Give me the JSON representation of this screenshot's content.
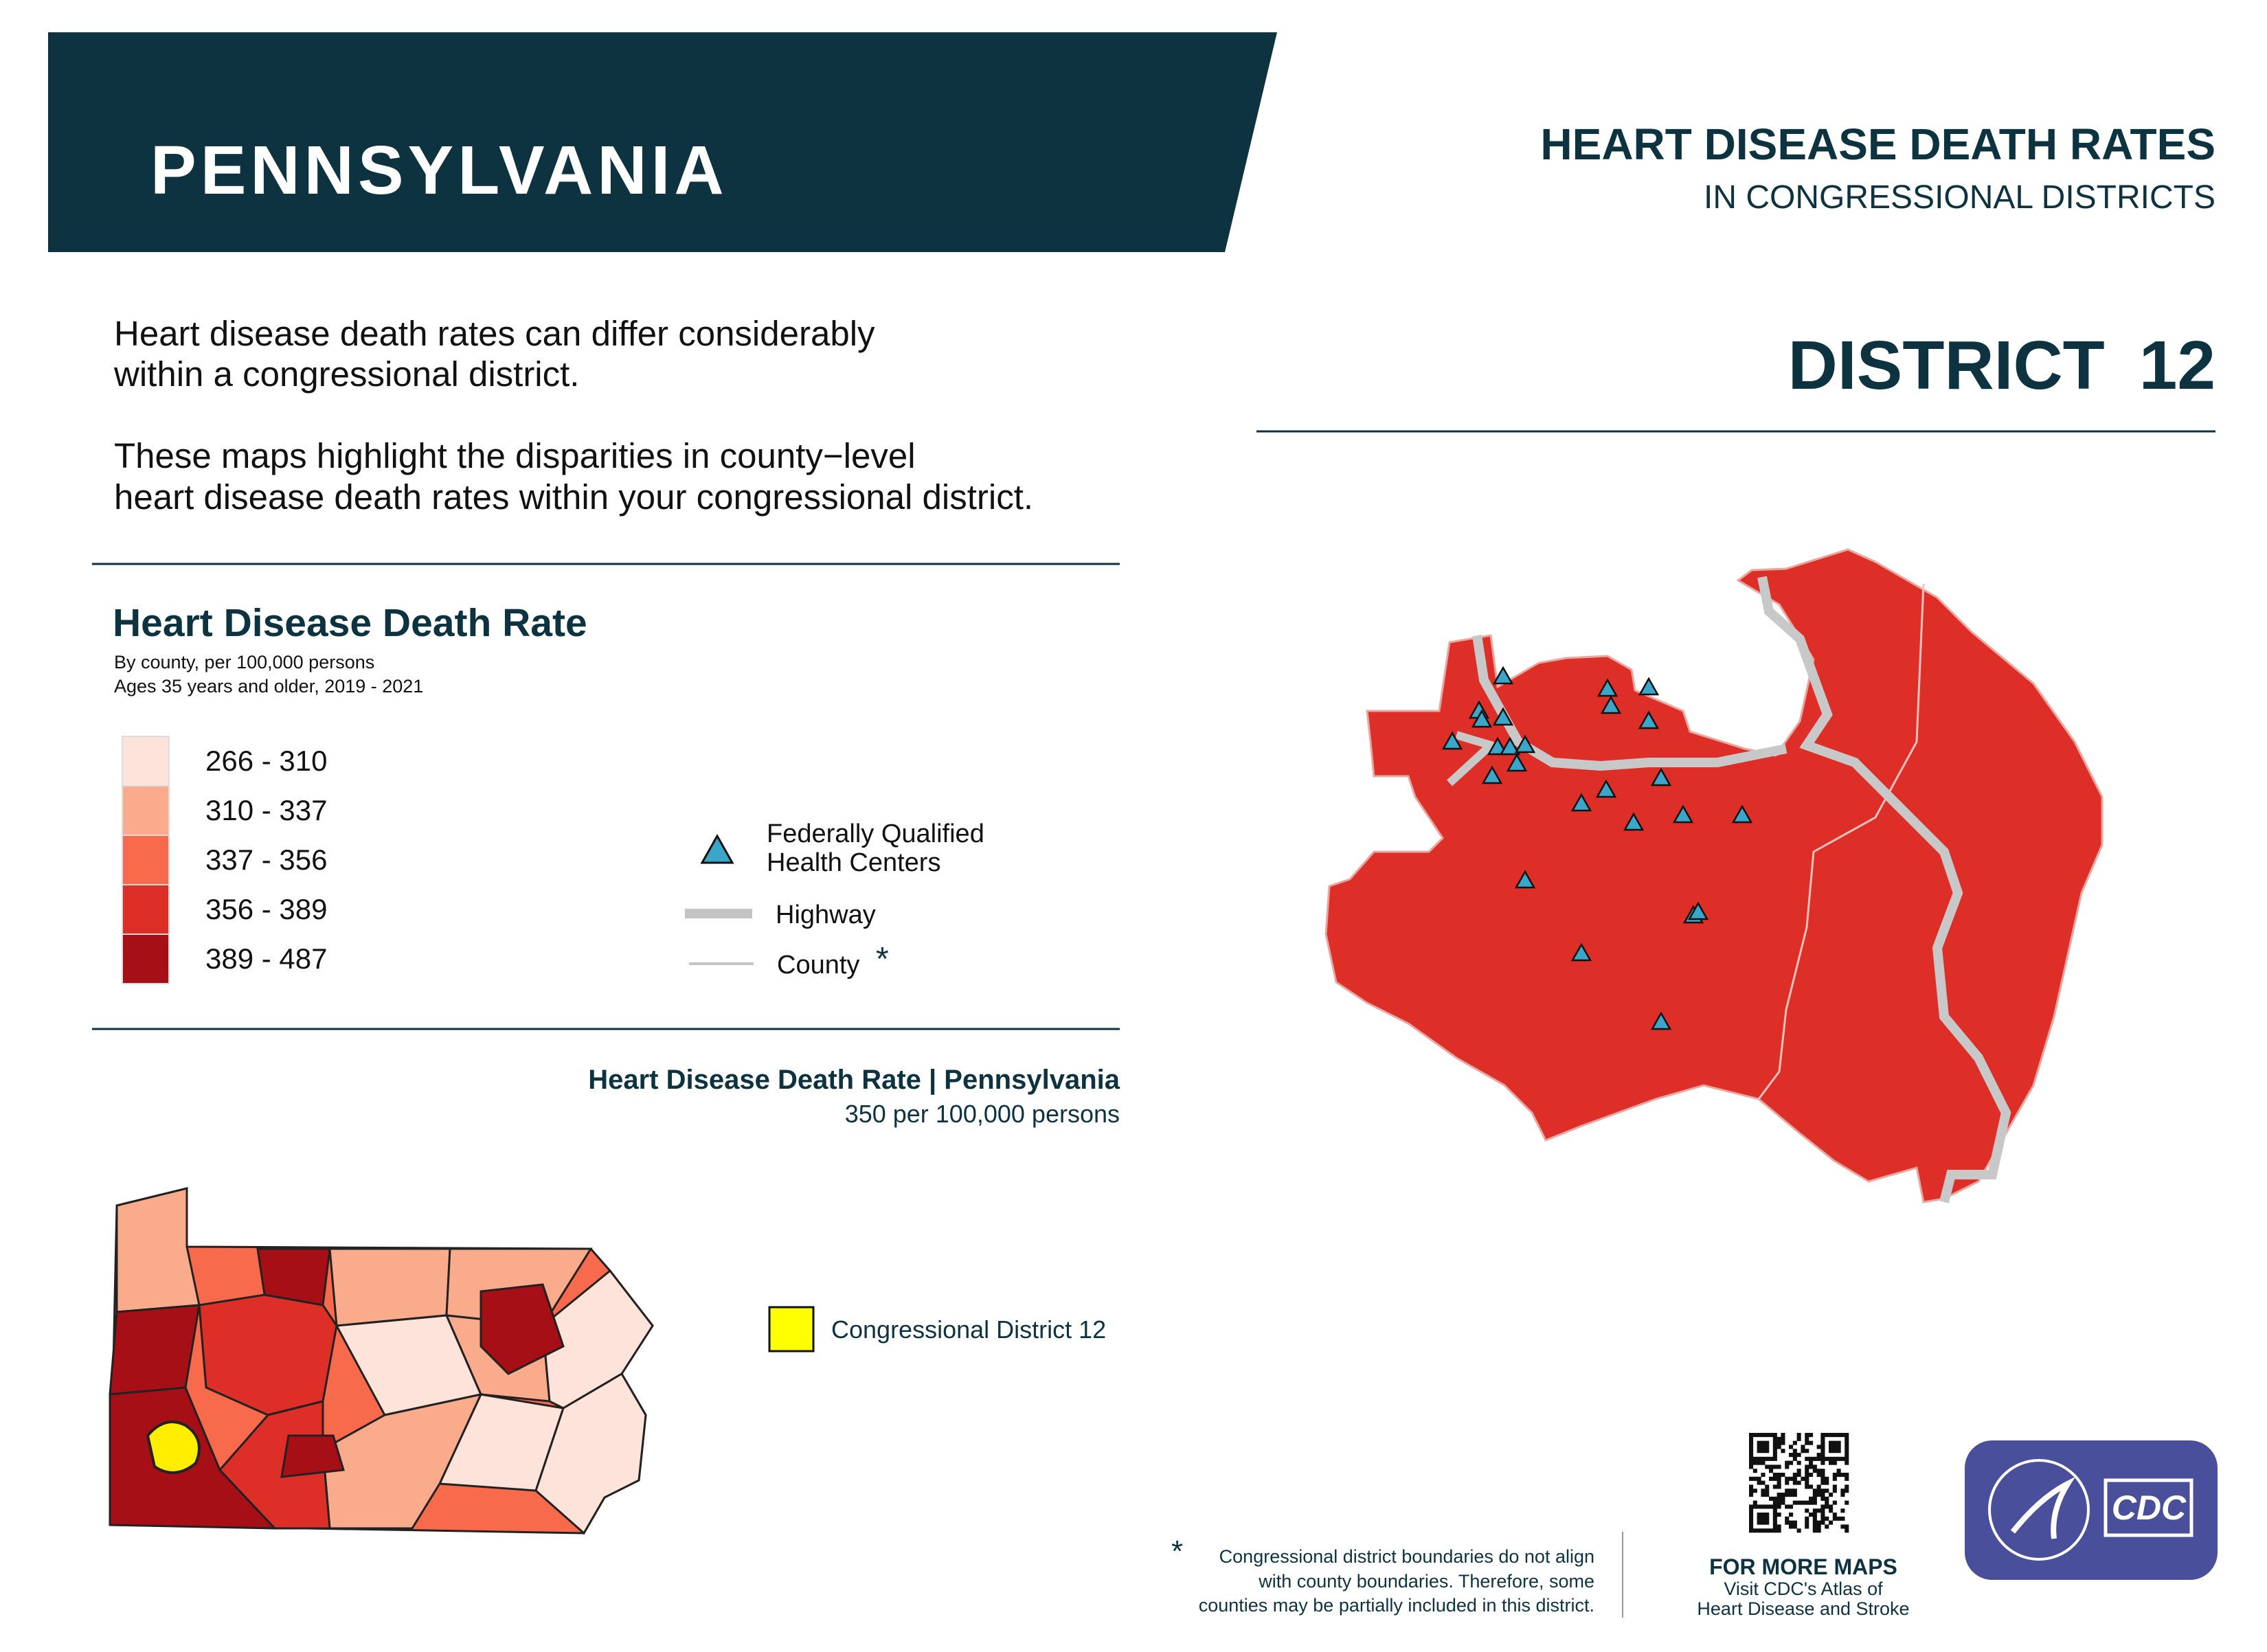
{
  "header": {
    "state": "PENNSYLVANIA",
    "title": "HEART DISEASE DEATH RATES",
    "subtitle": "IN CONGRESSIONAL DISTRICTS",
    "district_label": "DISTRICT",
    "district_number": "12"
  },
  "intro": {
    "lines": [
      "Heart disease death rates can differ considerably",
      "within a congressional district.",
      "These maps highlight the disparities in county−level",
      "heart disease death rates within your congressional district."
    ]
  },
  "legend": {
    "title": "Heart Disease Death Rate",
    "subtitle_lines": [
      "By county, per 100,000 persons",
      "Ages 35 years and older, 2019 - 2021"
    ],
    "bins": [
      {
        "label": "266 - 310",
        "color": "#fde3d9"
      },
      {
        "label": "310 - 337",
        "color": "#f9ab8c"
      },
      {
        "label": "337 - 356",
        "color": "#f76a4b"
      },
      {
        "label": "356 - 389",
        "color": "#dd2e27"
      },
      {
        "label": "389 - 487",
        "color": "#a50f15"
      }
    ],
    "symbols": {
      "fqhc_lines": [
        "Federally Qualified",
        "Health Centers"
      ],
      "highway": "Highway",
      "county": "County",
      "county_note": "*"
    }
  },
  "state_rate": {
    "title": "Heart Disease Death Rate | Pennsylvania",
    "value": "350 per 100,000 persons"
  },
  "state_map": {
    "legend": "Congressional District 12"
  },
  "footnote": {
    "mark": "*",
    "lines": [
      "Congressional district boundaries do not align",
      "with county boundaries. Therefore, some",
      "counties may be partially included in this district."
    ]
  },
  "more_maps": {
    "title": "FOR MORE MAPS",
    "lines": [
      "Visit CDC's Atlas of",
      "Heart Disease and Stroke"
    ]
  },
  "logo": {
    "text": "CDC"
  }
}
